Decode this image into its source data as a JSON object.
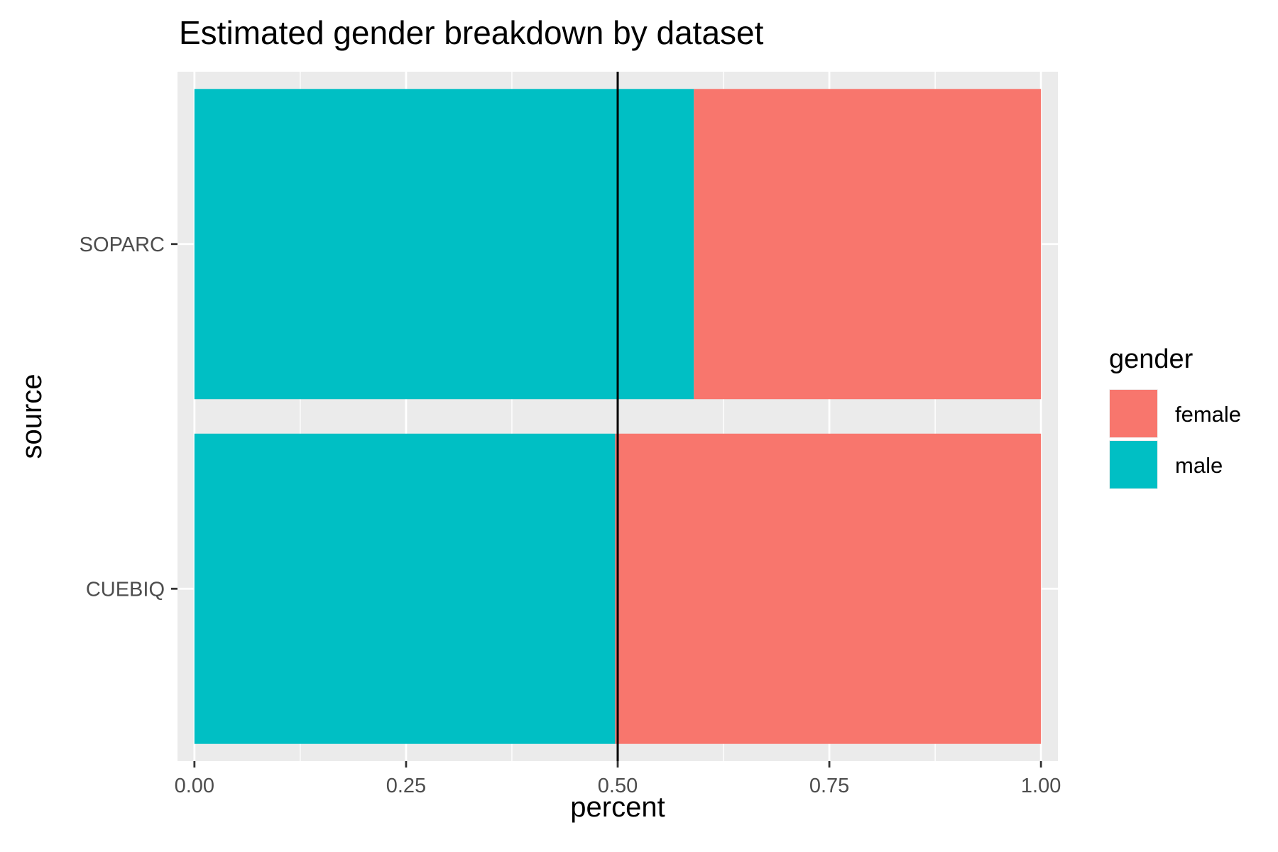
{
  "chart_data": {
    "type": "bar",
    "orientation": "horizontal",
    "stacked": true,
    "title": "Estimated gender breakdown by dataset",
    "xlabel": "percent",
    "ylabel": "source",
    "categories": [
      "SOPARC",
      "CUEBIQ"
    ],
    "series": [
      {
        "name": "male",
        "values": [
          0.59,
          0.497
        ],
        "color": "#00BFC4"
      },
      {
        "name": "female",
        "values": [
          0.41,
          0.503
        ],
        "color": "#F8766D"
      }
    ],
    "xlim": [
      -0.02,
      1.02
    ],
    "x_ticks": [
      0,
      0.25,
      0.5,
      0.75,
      1
    ],
    "x_tick_labels": [
      "0.00",
      "0.25",
      "0.50",
      "0.75",
      "1.00"
    ],
    "reference_line": {
      "x": 0.5,
      "color": "#000000"
    },
    "legend": {
      "title": "gender",
      "position": "right",
      "entries": [
        "female",
        "male"
      ]
    },
    "grid": true,
    "panel_background": "#EBEBEB",
    "grid_color": "#FFFFFF"
  }
}
